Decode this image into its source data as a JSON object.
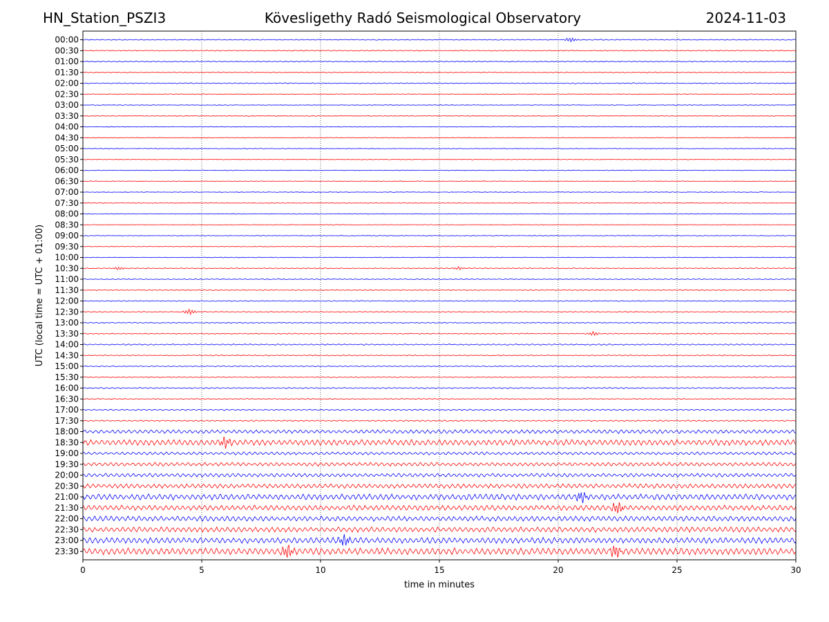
{
  "header": {
    "station": "HN_Station_PSZI3",
    "observatory": "Kövesligethy Radó Seismological Observatory",
    "date": "2024-11-03"
  },
  "chart_data": {
    "type": "line",
    "title": "Kövesligethy Radó Seismological Observatory",
    "xlabel": "time in minutes",
    "ylabel": "UTC (local time = UTC + 01:00)",
    "xlim": [
      0,
      30
    ],
    "x_ticks": [
      0,
      5,
      10,
      15,
      20,
      25,
      30
    ],
    "vertical_grid": "dotted at 5-minute intervals",
    "row_labels": [
      "00:00",
      "00:30",
      "01:00",
      "01:30",
      "02:00",
      "02:30",
      "03:00",
      "03:30",
      "04:00",
      "04:30",
      "05:00",
      "05:30",
      "06:00",
      "06:30",
      "07:00",
      "07:30",
      "08:00",
      "08:30",
      "09:00",
      "09:30",
      "10:00",
      "10:30",
      "11:00",
      "11:30",
      "12:00",
      "12:30",
      "13:00",
      "13:30",
      "14:00",
      "14:30",
      "15:00",
      "15:30",
      "16:00",
      "16:30",
      "17:00",
      "17:30",
      "18:00",
      "18:30",
      "19:00",
      "19:30",
      "20:00",
      "20:30",
      "21:00",
      "21:30",
      "22:00",
      "22:30",
      "23:00",
      "23:30"
    ],
    "series_colors": [
      "#0000ff",
      "#ff0000"
    ],
    "trace_activity": [
      1,
      1,
      1,
      1,
      1,
      0.5,
      0.5,
      0.5,
      0.5,
      0.5,
      0.5,
      0.5,
      0.5,
      0.5,
      0.5,
      0.5,
      0.5,
      0.5,
      0.5,
      0.5,
      0.5,
      1,
      1,
      1,
      1,
      1,
      1,
      1,
      1.5,
      1,
      1,
      1,
      1.5,
      1,
      1.5,
      1.5,
      5,
      8,
      4,
      5,
      5,
      6,
      8,
      7,
      7,
      7,
      8,
      9
    ],
    "events": [
      {
        "row": 25,
        "minute": 4.5,
        "amplitude": 4
      },
      {
        "row": 0,
        "minute": 20.5,
        "amplitude": 3
      },
      {
        "row": 27,
        "minute": 21.5,
        "amplitude": 3
      },
      {
        "row": 21,
        "minute": 1.5,
        "amplitude": 2
      },
      {
        "row": 21,
        "minute": 15.8,
        "amplitude": 2
      },
      {
        "row": 37,
        "minute": 6.0,
        "amplitude": 8
      },
      {
        "row": 42,
        "minute": 21.0,
        "amplitude": 8
      },
      {
        "row": 43,
        "minute": 22.5,
        "amplitude": 9
      },
      {
        "row": 46,
        "minute": 11.0,
        "amplitude": 9
      },
      {
        "row": 47,
        "minute": 8.6,
        "amplitude": 10
      },
      {
        "row": 47,
        "minute": 22.4,
        "amplitude": 9
      }
    ]
  }
}
